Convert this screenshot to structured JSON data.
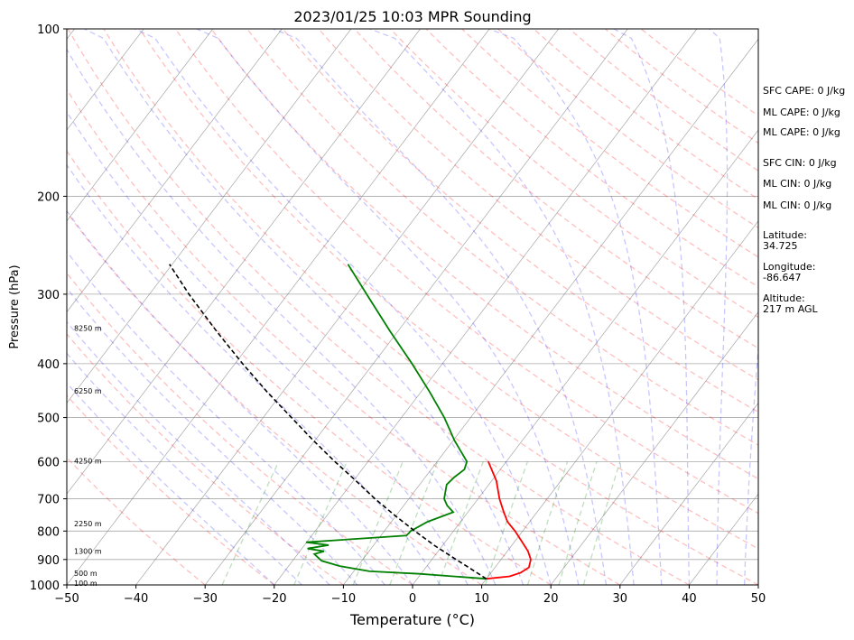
{
  "chart_data": {
    "type": "line",
    "subtype": "skew-T log-p sounding",
    "title": "2023/01/25 10:03 MPR Sounding",
    "xlabel": "Temperature (°C)",
    "ylabel": "Pressure (hPa)",
    "xlim": [
      -50,
      50
    ],
    "ylim": [
      1000,
      100
    ],
    "y_scale": "log",
    "x_ticks": [
      "−50",
      "−40",
      "−30",
      "−20",
      "−10",
      "0",
      "10",
      "20",
      "30",
      "40",
      "50"
    ],
    "x_tick_values": [
      -50,
      -40,
      -30,
      -20,
      -10,
      0,
      10,
      20,
      30,
      40,
      50
    ],
    "y_ticks": [
      "100",
      "200",
      "300",
      "400",
      "500",
      "600",
      "700",
      "800",
      "900",
      "1000"
    ],
    "y_tick_values": [
      100,
      200,
      300,
      400,
      500,
      600,
      700,
      800,
      900,
      1000
    ],
    "grid": true,
    "height_labels": [
      {
        "text": "100 m",
        "p": 992
      },
      {
        "text": "500 m",
        "p": 953
      },
      {
        "text": "1300 m",
        "p": 870
      },
      {
        "text": "2250 m",
        "p": 775
      },
      {
        "text": "4250 m",
        "p": 598
      },
      {
        "text": "6250 m",
        "p": 448
      },
      {
        "text": "8250 m",
        "p": 345
      }
    ],
    "series": [
      {
        "role": "temperature",
        "color": "#ff0000",
        "points": [
          {
            "p": 975,
            "t": 10
          },
          {
            "p": 965,
            "t": 13.1
          },
          {
            "p": 950,
            "t": 14.3
          },
          {
            "p": 930,
            "t": 14.9
          },
          {
            "p": 900,
            "t": 14.3
          },
          {
            "p": 870,
            "t": 13
          },
          {
            "p": 840,
            "t": 11.3
          },
          {
            "p": 800,
            "t": 8.9
          },
          {
            "p": 770,
            "t": 6.8
          },
          {
            "p": 740,
            "t": 5.2
          },
          {
            "p": 700,
            "t": 3.1
          },
          {
            "p": 650,
            "t": 0.7
          },
          {
            "p": 600,
            "t": -2.6
          }
        ]
      },
      {
        "role": "dewpoint",
        "color": "#008000",
        "points": [
          {
            "p": 975,
            "t": 10
          },
          {
            "p": 955,
            "t": -0.2
          },
          {
            "p": 945,
            "t": -7.7
          },
          {
            "p": 925,
            "t": -12.6
          },
          {
            "p": 905,
            "t": -15.8
          },
          {
            "p": 880,
            "t": -17.6
          },
          {
            "p": 870,
            "t": -16.5
          },
          {
            "p": 860,
            "t": -19.2
          },
          {
            "p": 848,
            "t": -16.5
          },
          {
            "p": 838,
            "t": -20.1
          },
          {
            "p": 815,
            "t": -6.3
          },
          {
            "p": 800,
            "t": -6.2
          },
          {
            "p": 770,
            "t": -4.8
          },
          {
            "p": 740,
            "t": -2.1
          },
          {
            "p": 720,
            "t": -3.7
          },
          {
            "p": 700,
            "t": -4.9
          },
          {
            "p": 660,
            "t": -6.1
          },
          {
            "p": 640,
            "t": -5.8
          },
          {
            "p": 620,
            "t": -5.2
          },
          {
            "p": 600,
            "t": -5.7
          },
          {
            "p": 550,
            "t": -9.8
          },
          {
            "p": 500,
            "t": -13.8
          },
          {
            "p": 450,
            "t": -18.7
          },
          {
            "p": 400,
            "t": -24.4
          },
          {
            "p": 350,
            "t": -31.1
          },
          {
            "p": 300,
            "t": -38.6
          },
          {
            "p": 265,
            "t": -44.6
          }
        ]
      },
      {
        "role": "parcel",
        "color": "#000000",
        "style": "dashed",
        "points": [
          {
            "p": 975,
            "t": 10
          },
          {
            "p": 930,
            "t": 6.2
          },
          {
            "p": 900,
            "t": 3.5
          },
          {
            "p": 850,
            "t": -1.1
          },
          {
            "p": 800,
            "t": -5.6
          },
          {
            "p": 750,
            "t": -10.2
          },
          {
            "p": 700,
            "t": -14.9
          },
          {
            "p": 650,
            "t": -19.6
          },
          {
            "p": 600,
            "t": -24.8
          },
          {
            "p": 550,
            "t": -30.2
          },
          {
            "p": 500,
            "t": -35.9
          },
          {
            "p": 450,
            "t": -42.2
          },
          {
            "p": 400,
            "t": -48.9
          },
          {
            "p": 350,
            "t": -56.2
          },
          {
            "p": 300,
            "t": -64.3
          },
          {
            "p": 265,
            "t": -70.4
          }
        ]
      }
    ]
  },
  "side_info": {
    "sfc_cape": "SFC CAPE: 0 J/kg",
    "ml_cape_1": "ML CAPE: 0 J/kg",
    "ml_cape_2": "ML CAPE: 0 J/kg",
    "sfc_cin": "SFC CIN: 0 J/kg",
    "ml_cin_1": "ML CIN: 0 J/kg",
    "ml_cin_2": "ML CIN: 0 J/kg",
    "latitude_label": "Latitude:",
    "latitude_value": "34.725",
    "longitude_label": "Longitude:",
    "longitude_value": "-86.647",
    "altitude_label": "Altitude:",
    "altitude_value": "217 m AGL"
  },
  "colors": {
    "dry_adiabat": "#ff0000",
    "moist_adiabat": "#0000ff",
    "mixing_ratio": "#008000",
    "isotherm": "#808080",
    "isobar": "#a9a9a9"
  }
}
